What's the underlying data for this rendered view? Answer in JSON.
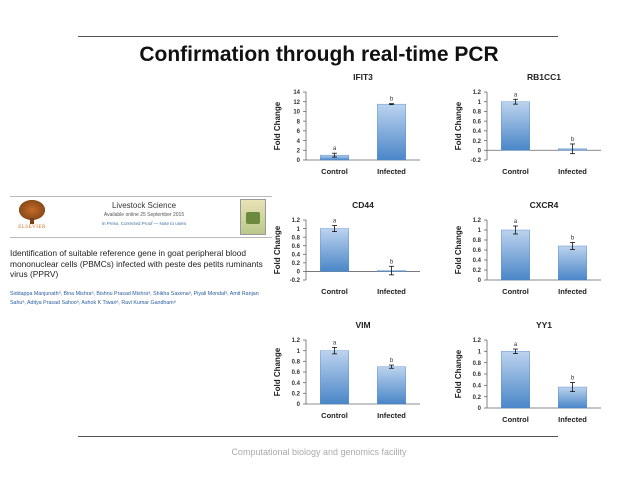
{
  "slide": {
    "title": "Confirmation through real-time PCR",
    "footer": "Computational biology and genomics facility"
  },
  "paper": {
    "journal": "Livestock Science",
    "online": "Available online 25 September 2015",
    "press": "In Press, Corrected Proof — Note to users",
    "logo_text": "ELSEVIER",
    "title": "Identification of suitable reference gene in goat peripheral blood mononuclear cells (PBMCs) infected with peste des petits ruminants virus (PPRV)",
    "authors": "Siddappa Manjunathᵃ, Bina Mishraᵃ, Bishnu Prasad Mishraᵃ, Shikha Saxenaᵃ, Piyali Mondalᵃ, Amit Ranjan Sahuᵃ, Aditya Prasad Sahooᵃ, Ashok K Tiwariᵃ, Ravi Kumar Gandhamᵃ"
  },
  "colors": {
    "bar_top": "#bcd3ee",
    "bar_bottom": "#4a86c8",
    "axis": "#666666"
  },
  "chart_data": [
    {
      "type": "bar",
      "title": "IFIT3",
      "ylabel": "Fold Change",
      "categories": [
        "Control",
        "Infected"
      ],
      "values": [
        1.0,
        11.5
      ],
      "errors": [
        0.4,
        0.1
      ],
      "sig": [
        "a",
        "b"
      ],
      "ylim": [
        0,
        14
      ],
      "ticks": [
        "0",
        "2",
        "4",
        "6",
        "8",
        "10",
        "12",
        "14"
      ],
      "grid": false
    },
    {
      "type": "bar",
      "title": "RB1CC1",
      "ylabel": "Fold Change",
      "categories": [
        "Control",
        "Infected"
      ],
      "values": [
        1.0,
        0.03
      ],
      "errors": [
        0.05,
        0.1
      ],
      "sig": [
        "a",
        "b"
      ],
      "ylim": [
        -0.2,
        1.2
      ],
      "ticks": [
        "-0.2",
        "0",
        "0.2",
        "0.4",
        "0.6",
        "0.8",
        "1",
        "1.2"
      ],
      "grid": false
    },
    {
      "type": "bar",
      "title": "CD44",
      "ylabel": "Fold Change",
      "categories": [
        "Control",
        "Infected"
      ],
      "values": [
        1.0,
        0.02
      ],
      "errors": [
        0.07,
        0.1
      ],
      "sig": [
        "a",
        "b"
      ],
      "ylim": [
        -0.2,
        1.2
      ],
      "ticks": [
        "-0.2",
        "0",
        "0.2",
        "0.4",
        "0.6",
        "0.8",
        "1",
        "1.2"
      ],
      "grid": false
    },
    {
      "type": "bar",
      "title": "CXCR4",
      "ylabel": "Fold Change",
      "categories": [
        "Control",
        "Infected"
      ],
      "values": [
        1.0,
        0.68
      ],
      "errors": [
        0.08,
        0.07
      ],
      "sig": [
        "a",
        "b"
      ],
      "ylim": [
        0,
        1.2
      ],
      "ticks": [
        "0",
        "0.2",
        "0.4",
        "0.6",
        "0.8",
        "1",
        "1.2"
      ],
      "grid": false
    },
    {
      "type": "bar",
      "title": "VIM",
      "ylabel": "Fold Change",
      "categories": [
        "Control",
        "Infected"
      ],
      "values": [
        1.0,
        0.7
      ],
      "errors": [
        0.06,
        0.03
      ],
      "sig": [
        "a",
        "b"
      ],
      "ylim": [
        0,
        1.2
      ],
      "ticks": [
        "0",
        "0.2",
        "0.4",
        "0.6",
        "0.8",
        "1",
        "1.2"
      ],
      "grid": false
    },
    {
      "type": "bar",
      "title": "YY1",
      "ylabel": "Fold Change",
      "categories": [
        "Control",
        "Infected"
      ],
      "values": [
        1.0,
        0.37
      ],
      "errors": [
        0.04,
        0.08
      ],
      "sig": [
        "a",
        "b"
      ],
      "ylim": [
        0,
        1.2
      ],
      "ticks": [
        "0",
        "0.2",
        "0.4",
        "0.6",
        "0.8",
        "1",
        "1.2"
      ],
      "grid": false
    }
  ]
}
